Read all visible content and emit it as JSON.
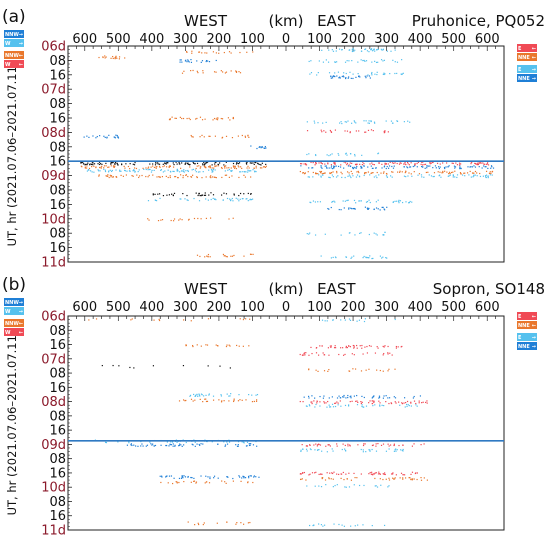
{
  "chart_data": [
    {
      "type": "scatter",
      "panel_label": "(a)",
      "station": "Pruhonice, PQ052",
      "xlabel": "(km)",
      "left_label": "WEST",
      "right_label": "EAST",
      "ylabel": "UT, hr (2021.07.06–2021.07.11)",
      "x_ticks": [
        "600",
        "500",
        "400",
        "300",
        "200",
        "100",
        "0",
        "100",
        "200",
        "300",
        "400",
        "500",
        "600"
      ],
      "xlim": [
        -650,
        650
      ],
      "y_ticks": [
        "06d",
        "08",
        "16",
        "07d",
        "08",
        "16",
        "08d",
        "08",
        "16",
        "09d",
        "08",
        "16",
        "10d",
        "08",
        "16",
        "11d"
      ],
      "day_ticks": [
        "06d",
        "07d",
        "08d",
        "09d",
        "10d",
        "11d"
      ],
      "ylim_hours": [
        0,
        120
      ],
      "reference_line_hour": 64,
      "legend_left": [
        {
          "label": "NNW",
          "arrow": "→",
          "color": "#1f7fd6"
        },
        {
          "label": "W",
          "arrow": "→",
          "color": "#55c1ee"
        },
        {
          "label": "NNW",
          "arrow": "←",
          "color": "#e9772c"
        },
        {
          "label": "W",
          "arrow": "←",
          "color": "#f04a55"
        }
      ],
      "legend_right": [
        {
          "label": "E",
          "arrow": "←",
          "color": "#f04a55"
        },
        {
          "label": "NNE",
          "arrow": "←",
          "color": "#e9772c"
        },
        {
          "label": "E",
          "arrow": "→",
          "color": "#55c1ee"
        },
        {
          "label": "NNE",
          "arrow": "→",
          "color": "#1f7fd6"
        }
      ],
      "bands": [
        {
          "hour": 2,
          "side": "east",
          "x_range": [
            100,
            330
          ],
          "color": "#55c1ee",
          "density": 40
        },
        {
          "hour": 3,
          "side": "west",
          "x_range": [
            -300,
            -100
          ],
          "color": "#e9772c",
          "density": 18
        },
        {
          "hour": 6,
          "side": "west",
          "x_range": [
            -570,
            -480
          ],
          "color": "#e9772c",
          "density": 18
        },
        {
          "hour": 8,
          "side": "west",
          "x_range": [
            -330,
            -200
          ],
          "color": "#1f7fd6",
          "density": 20
        },
        {
          "hour": 8,
          "side": "east",
          "x_range": [
            60,
            350
          ],
          "color": "#55c1ee",
          "density": 30
        },
        {
          "hour": 14,
          "side": "west",
          "x_range": [
            -320,
            -100
          ],
          "color": "#e9772c",
          "density": 20
        },
        {
          "hour": 15,
          "side": "east",
          "x_range": [
            60,
            350
          ],
          "color": "#55c1ee",
          "density": 30
        },
        {
          "hour": 17,
          "side": "east",
          "x_range": [
            130,
            260
          ],
          "color": "#1f7fd6",
          "density": 30
        },
        {
          "hour": 40,
          "side": "west",
          "x_range": [
            -380,
            -150
          ],
          "color": "#e9772c",
          "density": 30
        },
        {
          "hour": 42,
          "side": "east",
          "x_range": [
            60,
            380
          ],
          "color": "#55c1ee",
          "density": 35
        },
        {
          "hour": 47,
          "side": "east",
          "x_range": [
            60,
            320
          ],
          "color": "#f04a55",
          "density": 25
        },
        {
          "hour": 50,
          "side": "west",
          "x_range": [
            -620,
            -500
          ],
          "color": "#1f7fd6",
          "density": 20
        },
        {
          "hour": 50,
          "side": "west",
          "x_range": [
            -300,
            -100
          ],
          "color": "#e9772c",
          "density": 20
        },
        {
          "hour": 56,
          "side": "west",
          "x_range": [
            -120,
            -60
          ],
          "color": "#1f7fd6",
          "density": 12
        },
        {
          "hour": 60,
          "side": "east",
          "x_range": [
            60,
            300
          ],
          "color": "#55c1ee",
          "density": 20
        },
        {
          "hour": 65,
          "side": "west",
          "x_range": [
            -620,
            -60
          ],
          "color": "#111111",
          "density": 120
        },
        {
          "hour": 65,
          "side": "east",
          "x_range": [
            40,
            620
          ],
          "color": "#f04a55",
          "density": 120
        },
        {
          "hour": 67,
          "side": "west",
          "x_range": [
            -620,
            -60
          ],
          "color": "#e9772c",
          "density": 110
        },
        {
          "hour": 67,
          "side": "east",
          "x_range": [
            40,
            620
          ],
          "color": "#1f7fd6",
          "density": 110
        },
        {
          "hour": 69,
          "side": "west",
          "x_range": [
            -600,
            -80
          ],
          "color": "#55c1ee",
          "density": 100
        },
        {
          "hour": 70,
          "side": "east",
          "x_range": [
            40,
            620
          ],
          "color": "#e9772c",
          "density": 100
        },
        {
          "hour": 72,
          "side": "west",
          "x_range": [
            -560,
            -100
          ],
          "color": "#e9772c",
          "density": 70
        },
        {
          "hour": 72,
          "side": "east",
          "x_range": [
            60,
            620
          ],
          "color": "#55c1ee",
          "density": 80
        },
        {
          "hour": 82,
          "side": "west",
          "x_range": [
            -420,
            -100
          ],
          "color": "#111111",
          "density": 40
        },
        {
          "hour": 85,
          "side": "west",
          "x_range": [
            -420,
            -100
          ],
          "color": "#55c1ee",
          "density": 40
        },
        {
          "hour": 86,
          "side": "east",
          "x_range": [
            60,
            380
          ],
          "color": "#55c1ee",
          "density": 40
        },
        {
          "hour": 90,
          "side": "east",
          "x_range": [
            120,
            300
          ],
          "color": "#1f7fd6",
          "density": 30
        },
        {
          "hour": 96,
          "side": "west",
          "x_range": [
            -420,
            -150
          ],
          "color": "#e9772c",
          "density": 20
        },
        {
          "hour": 104,
          "side": "east",
          "x_range": [
            60,
            300
          ],
          "color": "#55c1ee",
          "density": 20
        },
        {
          "hour": 116,
          "side": "west",
          "x_range": [
            -280,
            -100
          ],
          "color": "#e9772c",
          "density": 20
        },
        {
          "hour": 117,
          "side": "east",
          "x_range": [
            100,
            330
          ],
          "color": "#55c1ee",
          "density": 25
        }
      ]
    },
    {
      "type": "scatter",
      "panel_label": "(b)",
      "station": "Sopron, SO148",
      "xlabel": "(km)",
      "left_label": "WEST",
      "right_label": "EAST",
      "ylabel": "UT, hr (2021.07.06–2021.07.11)",
      "x_ticks": [
        "600",
        "500",
        "400",
        "300",
        "200",
        "100",
        "0",
        "100",
        "200",
        "300",
        "400",
        "500",
        "600"
      ],
      "xlim": [
        -650,
        650
      ],
      "y_ticks": [
        "06d",
        "08",
        "16",
        "07d",
        "08",
        "16",
        "08d",
        "08",
        "16",
        "09d",
        "08",
        "16",
        "10d",
        "08",
        "16",
        "11d"
      ],
      "day_ticks": [
        "06d",
        "07d",
        "08d",
        "09d",
        "10d",
        "11d"
      ],
      "ylim_hours": [
        0,
        120
      ],
      "reference_line_hour": 70,
      "legend_left": [
        {
          "label": "NNW",
          "arrow": "→",
          "color": "#1f7fd6"
        },
        {
          "label": "W",
          "arrow": "→",
          "color": "#55c1ee"
        },
        {
          "label": "NNW",
          "arrow": "←",
          "color": "#e9772c"
        },
        {
          "label": "W",
          "arrow": "←",
          "color": "#f04a55"
        }
      ],
      "legend_right": [
        {
          "label": "E",
          "arrow": "←",
          "color": "#f04a55"
        },
        {
          "label": "NNE",
          "arrow": "←",
          "color": "#e9772c"
        },
        {
          "label": "E",
          "arrow": "→",
          "color": "#55c1ee"
        },
        {
          "label": "NNE",
          "arrow": "→",
          "color": "#1f7fd6"
        }
      ],
      "bands": [
        {
          "hour": 2,
          "side": "west",
          "x_range": [
            -600,
            -100
          ],
          "color": "#e9772c",
          "density": 14
        },
        {
          "hour": 2,
          "side": "east",
          "x_range": [
            100,
            330
          ],
          "color": "#55c1ee",
          "density": 14
        },
        {
          "hour": 16,
          "side": "west",
          "x_range": [
            -320,
            -100
          ],
          "color": "#e9772c",
          "density": 20
        },
        {
          "hour": 17,
          "side": "east",
          "x_range": [
            40,
            350
          ],
          "color": "#f04a55",
          "density": 45
        },
        {
          "hour": 21,
          "side": "east",
          "x_range": [
            40,
            330
          ],
          "color": "#f04a55",
          "density": 30
        },
        {
          "hour": 28,
          "side": "west",
          "x_range": [
            -600,
            -100
          ],
          "color": "#111111",
          "density": 10
        },
        {
          "hour": 30,
          "side": "east",
          "x_range": [
            40,
            330
          ],
          "color": "#e9772c",
          "density": 20
        },
        {
          "hour": 44,
          "side": "west",
          "x_range": [
            -300,
            -80
          ],
          "color": "#55c1ee",
          "density": 30
        },
        {
          "hour": 45,
          "side": "east",
          "x_range": [
            40,
            400
          ],
          "color": "#1f7fd6",
          "density": 45
        },
        {
          "hour": 47,
          "side": "west",
          "x_range": [
            -320,
            -80
          ],
          "color": "#e9772c",
          "density": 30
        },
        {
          "hour": 48,
          "side": "east",
          "x_range": [
            40,
            420
          ],
          "color": "#f04a55",
          "density": 60
        },
        {
          "hour": 50,
          "side": "east",
          "x_range": [
            40,
            400
          ],
          "color": "#55c1ee",
          "density": 40
        },
        {
          "hour": 70,
          "side": "west",
          "x_range": [
            -600,
            -80
          ],
          "color": "#55c1ee",
          "density": 50
        },
        {
          "hour": 72,
          "side": "west",
          "x_range": [
            -480,
            -80
          ],
          "color": "#1f7fd6",
          "density": 60
        },
        {
          "hour": 72,
          "side": "east",
          "x_range": [
            40,
            420
          ],
          "color": "#f04a55",
          "density": 50
        },
        {
          "hour": 75,
          "side": "east",
          "x_range": [
            40,
            350
          ],
          "color": "#55c1ee",
          "density": 40
        },
        {
          "hour": 88,
          "side": "east",
          "x_range": [
            40,
            400
          ],
          "color": "#f04a55",
          "density": 60
        },
        {
          "hour": 90,
          "side": "west",
          "x_range": [
            -380,
            -80
          ],
          "color": "#1f7fd6",
          "density": 50
        },
        {
          "hour": 91,
          "side": "east",
          "x_range": [
            40,
            420
          ],
          "color": "#e9772c",
          "density": 45
        },
        {
          "hour": 93,
          "side": "west",
          "x_range": [
            -380,
            -100
          ],
          "color": "#e9772c",
          "density": 25
        },
        {
          "hour": 95,
          "side": "east",
          "x_range": [
            60,
            350
          ],
          "color": "#55c1ee",
          "density": 20
        },
        {
          "hour": 116,
          "side": "west",
          "x_range": [
            -300,
            -100
          ],
          "color": "#e9772c",
          "density": 15
        },
        {
          "hour": 117,
          "side": "east",
          "x_range": [
            60,
            300
          ],
          "color": "#55c1ee",
          "density": 18
        }
      ]
    }
  ]
}
